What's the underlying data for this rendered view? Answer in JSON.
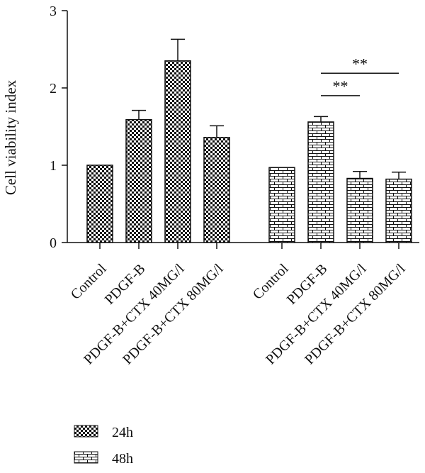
{
  "chart_data": {
    "type": "bar",
    "title": "",
    "xlabel": "",
    "ylabel": "Cell viability index",
    "ylim": [
      0,
      3
    ],
    "yticks": [
      0,
      1,
      2,
      3
    ],
    "grid": false,
    "legend_position": "bottom-left",
    "categories": [
      "Control",
      "PDGF-B",
      "PDGF-B+CTX 40MG/l",
      "PDGF-B+CTX 80MG/l"
    ],
    "series": [
      {
        "name": "24h",
        "pattern": "checkerboard",
        "values": [
          1.0,
          1.59,
          2.35,
          1.36
        ],
        "errors": [
          0.0,
          0.12,
          0.28,
          0.15
        ]
      },
      {
        "name": "48h",
        "pattern": "brick",
        "values": [
          0.97,
          1.56,
          0.83,
          0.82
        ],
        "errors": [
          0.0,
          0.07,
          0.09,
          0.09
        ]
      }
    ],
    "significance": [
      {
        "label": "**",
        "series": 1,
        "from": 1,
        "to": 2,
        "y": 1.9
      },
      {
        "label": "**",
        "series": 1,
        "from": 1,
        "to": 3,
        "y": 2.19
      }
    ],
    "colors": {
      "bar_fill": "#111111",
      "bar_background": "#ffffff",
      "axis": "#111111"
    }
  }
}
